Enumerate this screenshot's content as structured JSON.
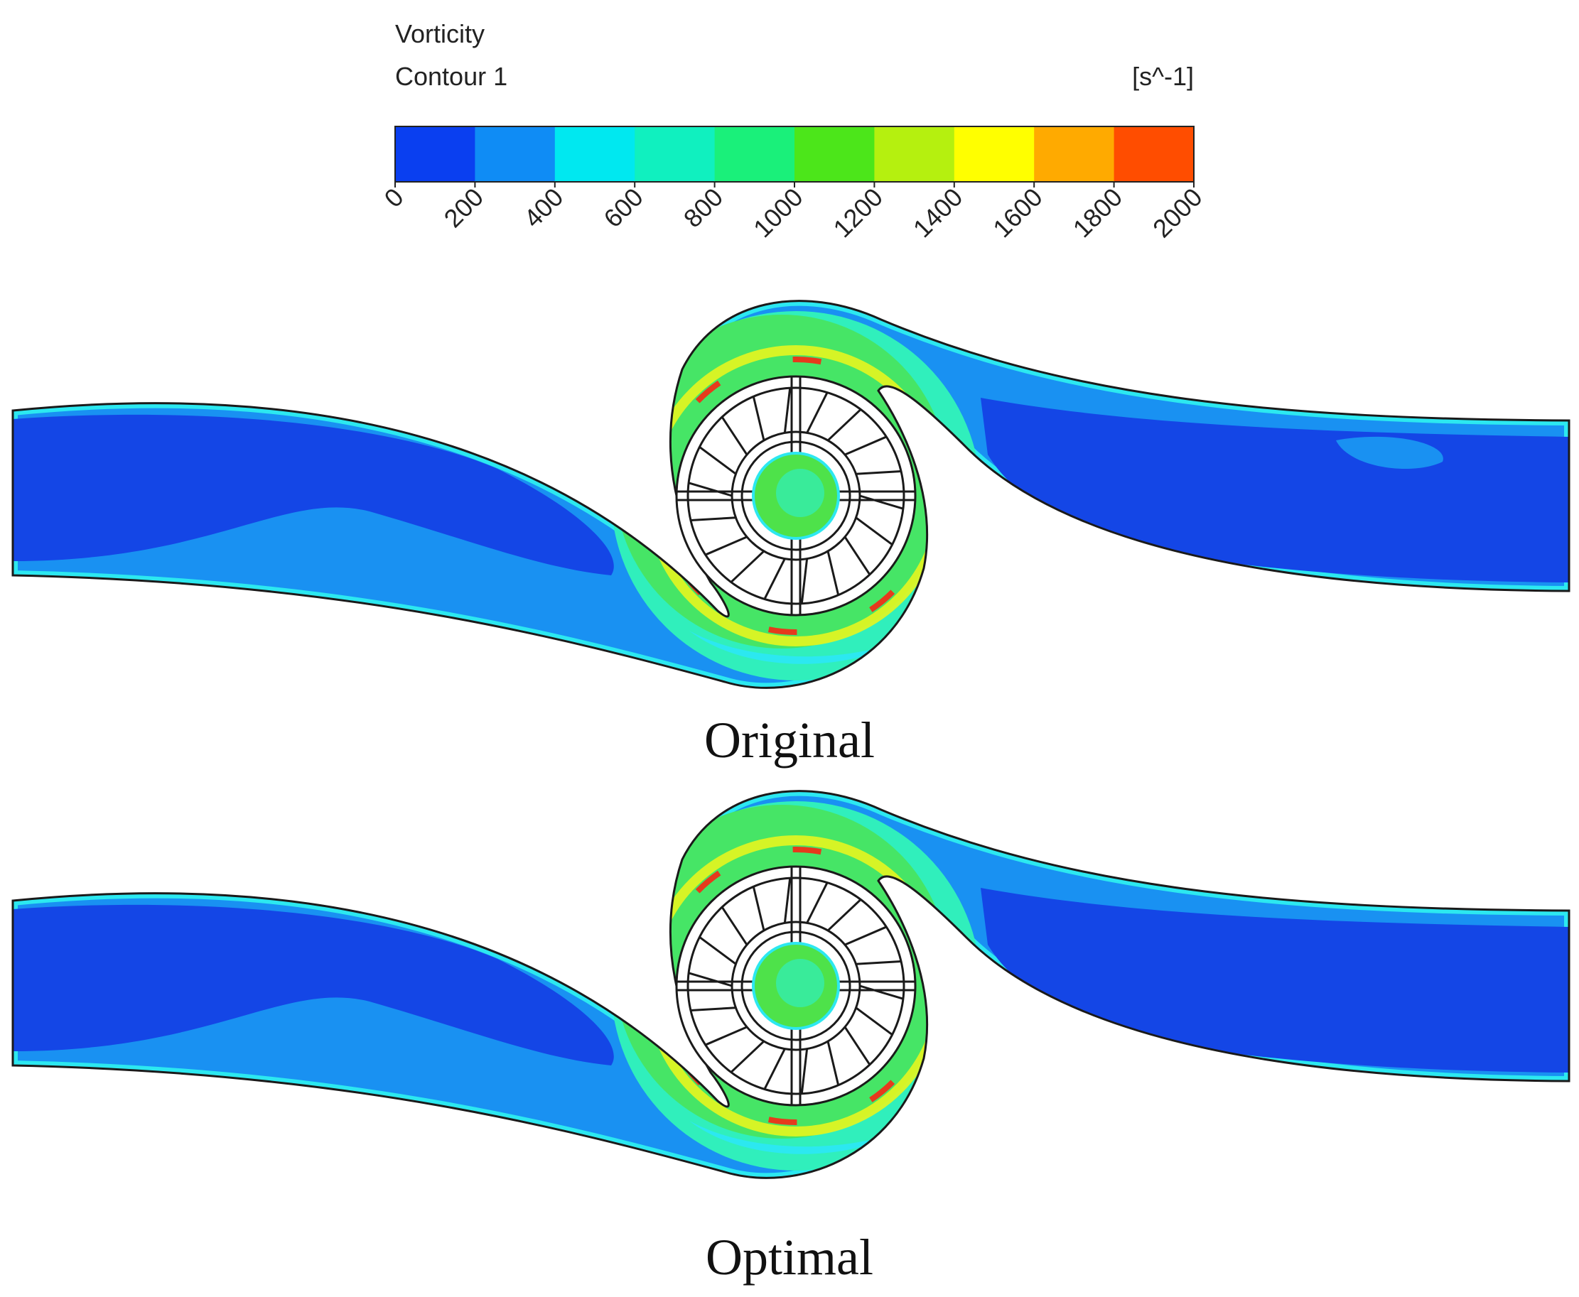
{
  "legend": {
    "variable": "Vorticity",
    "contour_name": "Contour 1",
    "unit": "[s^-1]",
    "ticks": [
      "0",
      "200",
      "400",
      "600",
      "800",
      "1000",
      "1200",
      "1400",
      "1600",
      "1800",
      "2000"
    ],
    "colors": [
      "#0a3ff0",
      "#0f8cf5",
      "#00e8f0",
      "#10f0bf",
      "#1af07a",
      "#4ce61a",
      "#b5f00f",
      "#ffff00",
      "#ffaa00",
      "#ff4d00"
    ]
  },
  "panels": [
    {
      "caption": "Original"
    },
    {
      "caption": "Optimal"
    }
  ],
  "palette": {
    "deep": "#1446e6",
    "mid": "#1991f2",
    "cyan": "#2ce8f0",
    "teal": "#30efbc",
    "green": "#4ee24a",
    "yellow": "#e6f51f",
    "red": "#e63a1c",
    "outline": "#1a1a1a"
  }
}
